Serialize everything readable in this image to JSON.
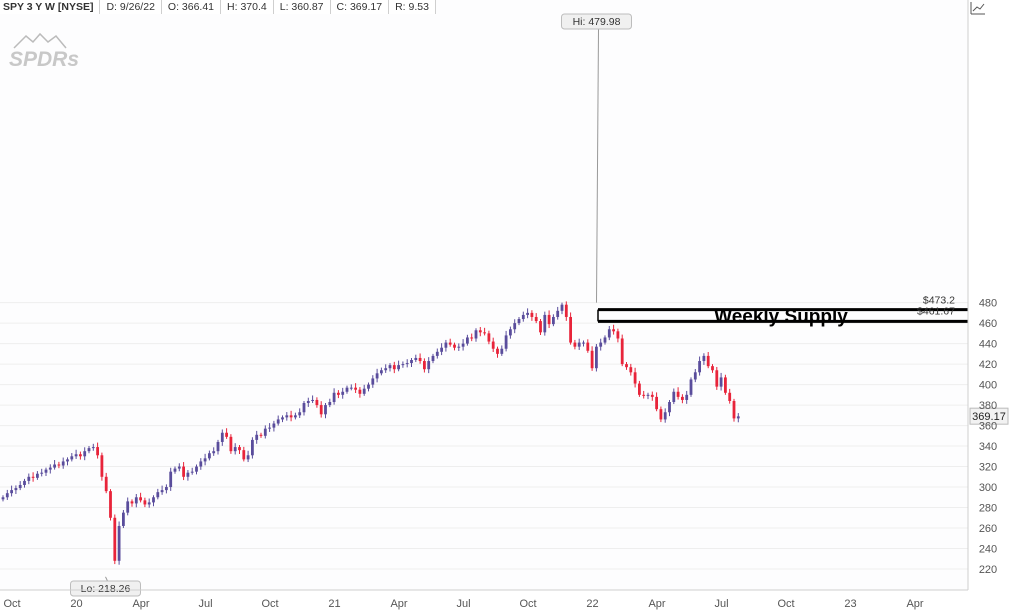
{
  "header": {
    "symbol": "SPY 3 Y W [NYSE]",
    "date": "D: 9/26/22",
    "open": "O: 366.41",
    "high": "H: 370.4",
    "low": "L: 360.87",
    "close": "C: 369.17",
    "range": "R: 9.53"
  },
  "watermark": "SPDRs",
  "colors": {
    "up": "#5a4d9c",
    "down": "#e8243a",
    "background": "#fdfdfe",
    "grid": "#eeeeee"
  },
  "chart_data": {
    "type": "candlestick",
    "timeframe": "weekly",
    "y_ticks": [
      220,
      240,
      260,
      280,
      300,
      320,
      340,
      360,
      380,
      400,
      420,
      440,
      460,
      480
    ],
    "ylim": [
      210,
      486
    ],
    "x_tick_labels": [
      "Oct",
      "20",
      "Apr",
      "Jul",
      "Oct",
      "21",
      "Apr",
      "Jul",
      "Oct",
      "22",
      "Apr",
      "Jul",
      "Oct",
      "23",
      "Apr"
    ],
    "x_start": "2019-10",
    "x_end": "2023-04",
    "price_label": "369.17",
    "last_close": 369.17,
    "high_label": "Hi: 479.98",
    "high_value": 479.98,
    "high_date": "2022-01",
    "low_label": "Lo: 218.26",
    "low_value": 218.26,
    "low_date": "2020-03",
    "supply_zone": {
      "label": "Weekly Supply",
      "upper_label": "$473.2",
      "upper": 473.2,
      "lower_label": "$461.67",
      "lower": 461.67
    },
    "closes": [
      290,
      294,
      297,
      299,
      302,
      306,
      310,
      309,
      313,
      314,
      317,
      319,
      322,
      321,
      325,
      327,
      330,
      332,
      330,
      335,
      338,
      339,
      331,
      310,
      296,
      270,
      228,
      262,
      275,
      286,
      284,
      290,
      287,
      283,
      285,
      290,
      295,
      297,
      300,
      315,
      318,
      320,
      310,
      314,
      315,
      320,
      325,
      328,
      333,
      335,
      344,
      353,
      349,
      335,
      339,
      336,
      327,
      331,
      346,
      351,
      350,
      357,
      358,
      362,
      366,
      368,
      370,
      368,
      370,
      373,
      382,
      384,
      385,
      380,
      371,
      380,
      383,
      392,
      390,
      393,
      397,
      397,
      395,
      391,
      396,
      400,
      406,
      411,
      414,
      416,
      419,
      415,
      419,
      420,
      421,
      424,
      426,
      423,
      415,
      423,
      428,
      432,
      436,
      441,
      439,
      436,
      437,
      440,
      446,
      445,
      453,
      451,
      450,
      442,
      435,
      430,
      435,
      448,
      454,
      460,
      464,
      468,
      470,
      466,
      462,
      451,
      468,
      459,
      466,
      472,
      478,
      466,
      441,
      437,
      441,
      441,
      433,
      416,
      437,
      441,
      446,
      454,
      452,
      445,
      420,
      417,
      412,
      401,
      390,
      389,
      390,
      388,
      376,
      366,
      373,
      383,
      393,
      388,
      385,
      390,
      405,
      412,
      423,
      428,
      418,
      414,
      398,
      407,
      392,
      384,
      367,
      369
    ]
  }
}
